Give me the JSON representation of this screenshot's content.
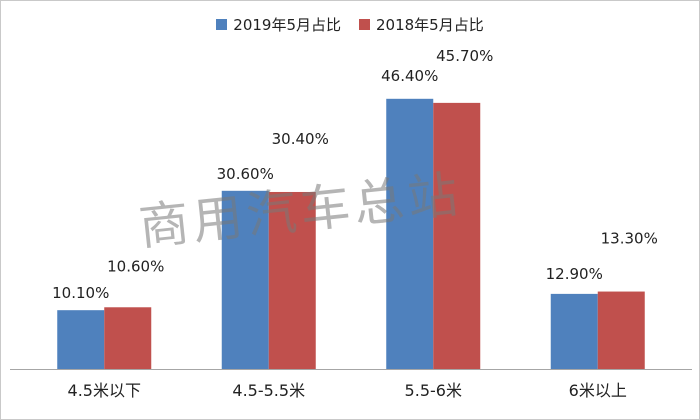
{
  "chart_data": {
    "type": "bar",
    "categories": [
      "4.5米以下",
      "4.5-5.5米",
      "5.5-6米",
      "6米以上"
    ],
    "series": [
      {
        "name": "2019年5月占比",
        "values": [
          10.1,
          30.6,
          46.4,
          12.9
        ],
        "labels": [
          "10.10%",
          "30.60%",
          "46.40%",
          "12.90%"
        ],
        "color": "#4f81bd"
      },
      {
        "name": "2018年5月占比",
        "values": [
          10.6,
          30.4,
          45.7,
          13.3
        ],
        "labels": [
          "10.60%",
          "30.40%",
          "45.70%",
          "13.30%"
        ],
        "color": "#c0504d"
      }
    ],
    "ylim": [
      0,
      50
    ],
    "grid": false,
    "legend_position": "top-center"
  },
  "watermark": "商用汽车总站"
}
